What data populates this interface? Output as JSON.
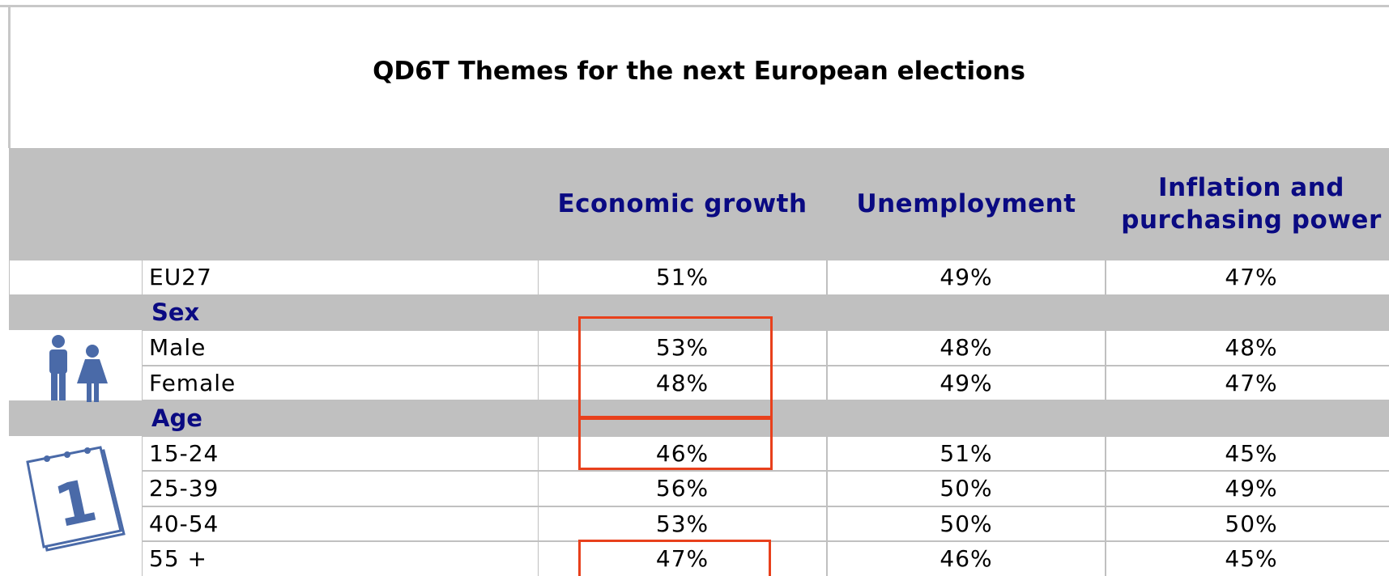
{
  "title": "QD6T Themes for the next European elections",
  "table": {
    "columns": [
      "Economic growth",
      "Unemployment",
      "Inflation and purchasing power"
    ],
    "rows": [
      {
        "label": "EU27",
        "values": [
          "51%",
          "49%",
          "47%"
        ]
      },
      {
        "label": "Sex"
      },
      {
        "label": "Male",
        "values": [
          "53%",
          "48%",
          "48%"
        ]
      },
      {
        "label": "Female",
        "values": [
          "48%",
          "49%",
          "47%"
        ]
      },
      {
        "label": "Age"
      },
      {
        "label": "15-24",
        "values": [
          "46%",
          "51%",
          "45%"
        ]
      },
      {
        "label": "25-39",
        "values": [
          "56%",
          "50%",
          "49%"
        ]
      },
      {
        "label": "40-54",
        "values": [
          "53%",
          "50%",
          "50%"
        ]
      },
      {
        "label": "55 +",
        "values": [
          "47%",
          "46%",
          "45%"
        ]
      }
    ]
  }
}
